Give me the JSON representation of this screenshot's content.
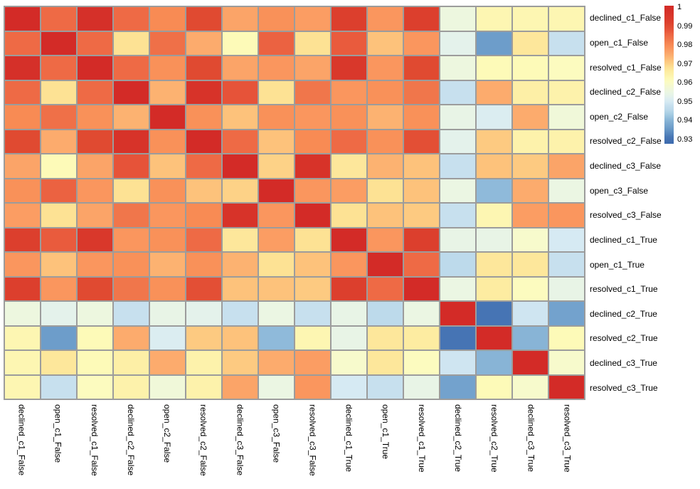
{
  "chart_data": {
    "type": "heatmap",
    "title": "",
    "xlabel": "",
    "ylabel": "",
    "labels": [
      "declined_c1_False",
      "open_c1_False",
      "resolved_c1_False",
      "declined_c2_False",
      "open_c2_False",
      "resolved_c2_False",
      "declined_c3_False",
      "open_c3_False",
      "resolved_c3_False",
      "declined_c1_True",
      "open_c1_True",
      "resolved_c1_True",
      "declined_c2_True",
      "resolved_c2_True",
      "declined_c3_True",
      "resolved_c3_True"
    ],
    "matrix": [
      [
        1.0,
        0.985,
        0.998,
        0.985,
        0.98,
        0.99,
        0.976,
        0.979,
        0.977,
        0.992,
        0.978,
        0.992,
        0.956,
        0.963,
        0.963,
        0.963
      ],
      [
        0.985,
        1.0,
        0.985,
        0.968,
        0.984,
        0.975,
        0.962,
        0.986,
        0.968,
        0.987,
        0.972,
        0.978,
        0.953,
        0.936,
        0.967,
        0.948
      ],
      [
        0.998,
        0.985,
        1.0,
        0.985,
        0.979,
        0.99,
        0.976,
        0.978,
        0.976,
        0.995,
        0.978,
        0.99,
        0.956,
        0.962,
        0.962,
        0.961
      ],
      [
        0.985,
        0.968,
        0.985,
        1.0,
        0.974,
        0.997,
        0.988,
        0.968,
        0.983,
        0.978,
        0.979,
        0.983,
        0.948,
        0.975,
        0.965,
        0.964
      ],
      [
        0.98,
        0.984,
        0.979,
        0.974,
        1.0,
        0.979,
        0.972,
        0.979,
        0.978,
        0.979,
        0.974,
        0.979,
        0.954,
        0.951,
        0.975,
        0.957
      ],
      [
        0.99,
        0.975,
        0.99,
        0.997,
        0.979,
        1.0,
        0.985,
        0.972,
        0.98,
        0.985,
        0.979,
        0.989,
        0.953,
        0.971,
        0.964,
        0.964
      ],
      [
        0.976,
        0.962,
        0.976,
        0.988,
        0.972,
        0.985,
        1.0,
        0.97,
        0.997,
        0.967,
        0.974,
        0.972,
        0.948,
        0.972,
        0.971,
        0.976
      ],
      [
        0.979,
        0.986,
        0.978,
        0.968,
        0.979,
        0.972,
        0.97,
        1.0,
        0.978,
        0.977,
        0.968,
        0.972,
        0.955,
        0.941,
        0.975,
        0.955
      ],
      [
        0.977,
        0.968,
        0.976,
        0.983,
        0.978,
        0.98,
        0.997,
        0.978,
        1.0,
        0.968,
        0.972,
        0.971,
        0.948,
        0.963,
        0.977,
        0.978
      ],
      [
        0.992,
        0.987,
        0.995,
        0.978,
        0.979,
        0.985,
        0.967,
        0.977,
        0.968,
        1.0,
        0.978,
        0.992,
        0.954,
        0.954,
        0.959,
        0.95
      ],
      [
        0.978,
        0.972,
        0.978,
        0.979,
        0.974,
        0.979,
        0.974,
        0.968,
        0.972,
        0.978,
        1.0,
        0.985,
        0.946,
        0.967,
        0.967,
        0.948
      ],
      [
        0.992,
        0.978,
        0.99,
        0.983,
        0.979,
        0.989,
        0.972,
        0.972,
        0.971,
        0.992,
        0.985,
        1.0,
        0.955,
        0.966,
        0.961,
        0.954
      ],
      [
        0.956,
        0.953,
        0.956,
        0.948,
        0.954,
        0.953,
        0.948,
        0.955,
        0.948,
        0.954,
        0.946,
        0.955,
        1.0,
        0.931,
        0.949,
        0.937
      ],
      [
        0.963,
        0.936,
        0.962,
        0.975,
        0.951,
        0.971,
        0.972,
        0.941,
        0.963,
        0.954,
        0.967,
        0.966,
        0.931,
        1.0,
        0.94,
        0.962
      ],
      [
        0.963,
        0.967,
        0.962,
        0.965,
        0.975,
        0.964,
        0.971,
        0.975,
        0.977,
        0.959,
        0.967,
        0.961,
        0.949,
        0.94,
        1.0,
        0.959
      ],
      [
        0.963,
        0.948,
        0.961,
        0.964,
        0.957,
        0.964,
        0.976,
        0.955,
        0.978,
        0.95,
        0.948,
        0.954,
        0.937,
        0.962,
        0.959,
        1.0
      ]
    ],
    "colorbar": {
      "position": "top-right",
      "tick_labels": [
        "1",
        "0.99",
        "0.98",
        "0.97",
        "0.96",
        "0.95",
        "0.94",
        "0.93"
      ],
      "tick_values": [
        1.0,
        0.99,
        0.98,
        0.97,
        0.96,
        0.95,
        0.94,
        0.93
      ],
      "vmax_display": 1.0008,
      "vmin_display": 0.9277
    },
    "value_range": [
      0.931,
      1.0
    ],
    "grid": true,
    "legend_position": "right"
  },
  "colors": {
    "background": "#ffffff",
    "grid_line": "#9c9c9c",
    "label_text": "#000000",
    "colormap_name": "RdYlBu_r",
    "colormap_stops": [
      [
        0.928,
        "#3d6bae"
      ],
      [
        0.931,
        "#4674b4"
      ],
      [
        0.933,
        "#5585bc"
      ],
      [
        0.936,
        "#6d9dca"
      ],
      [
        0.938,
        "#79a7cf"
      ],
      [
        0.941,
        "#8fbada"
      ],
      [
        0.943,
        "#a3cbe2"
      ],
      [
        0.946,
        "#bddaeb"
      ],
      [
        0.948,
        "#c7e0ee"
      ],
      [
        0.95,
        "#d6eaf3"
      ],
      [
        0.952,
        "#e0f0ef"
      ],
      [
        0.954,
        "#e8f4e6"
      ],
      [
        0.956,
        "#edf7df"
      ],
      [
        0.958,
        "#f3f8d2"
      ],
      [
        0.96,
        "#fafbc6"
      ],
      [
        0.962,
        "#fdfab8"
      ],
      [
        0.964,
        "#fdf2ab"
      ],
      [
        0.966,
        "#fdeca1"
      ],
      [
        0.968,
        "#fde294"
      ],
      [
        0.97,
        "#fdd287"
      ],
      [
        0.972,
        "#fdc27b"
      ],
      [
        0.974,
        "#fcb271"
      ],
      [
        0.976,
        "#fba468"
      ],
      [
        0.978,
        "#fa965e"
      ],
      [
        0.98,
        "#f88b54"
      ],
      [
        0.983,
        "#f0764b"
      ],
      [
        0.985,
        "#ee6a45"
      ],
      [
        0.988,
        "#e65339"
      ],
      [
        0.99,
        "#e04a31"
      ],
      [
        0.992,
        "#dc3f2d"
      ],
      [
        0.995,
        "#d9382b"
      ],
      [
        1.0,
        "#d32b27"
      ]
    ]
  }
}
